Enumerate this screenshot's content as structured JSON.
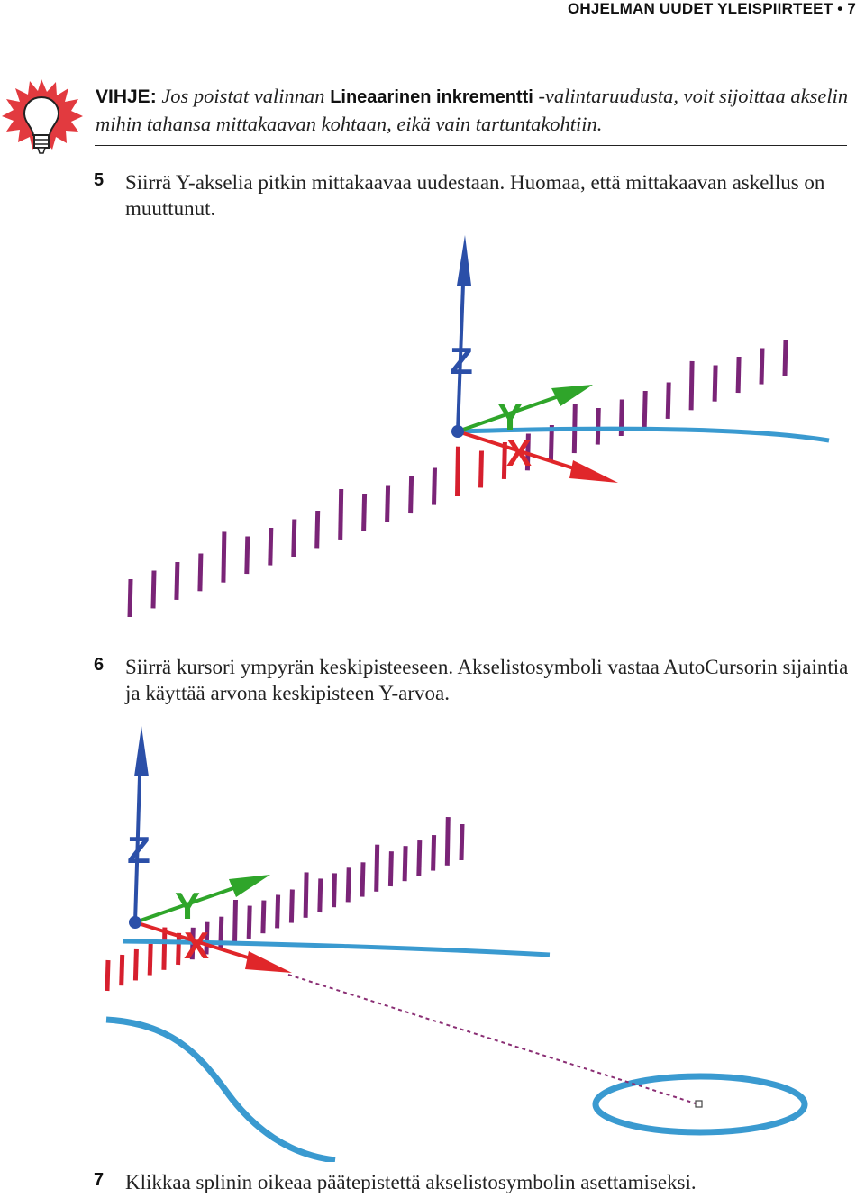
{
  "header": {
    "section_title": "OHJELMAN UUDET YLEISPIIRTEET",
    "separator": "•",
    "page_number": "7"
  },
  "tip": {
    "label": "VIHJE:",
    "text_before": "Jos poistat valinnan ",
    "option_name": "Lineaarinen inkrementti",
    "text_after": " -valintaruudusta, voit sijoittaa akselin mihin tahansa mittakaavan kohtaan, eikä vain tartuntakohtiin.",
    "icon": "lightbulb-icon"
  },
  "steps": [
    {
      "number": "5",
      "text": "Siirrä Y-akselia pitkin mittakaavaa uudestaan. Huomaa, että mittakaavan askellus on muuttunut."
    },
    {
      "number": "6",
      "text": "Siirrä kursori ympyrän keskipisteeseen. Akselistosymboli vastaa AutoCursorin sijaintia ja käyttää arvona keskipisteen Y-arvoa."
    },
    {
      "number": "7",
      "text": "Klikkaa splinin oikeaa päätepistettä akselistosymbolin asettamiseksi."
    }
  ],
  "figures": {
    "axis_labels": {
      "z": "Z",
      "y": "Y",
      "x": "X"
    },
    "colors": {
      "z_axis": "#2b4fa8",
      "y_axis": "#2fa52a",
      "x_axis": "#e0262a",
      "scale_tick": "#7a2477",
      "scale_tick_near": "#d61f2e",
      "spline": "#3a9ad0"
    }
  }
}
